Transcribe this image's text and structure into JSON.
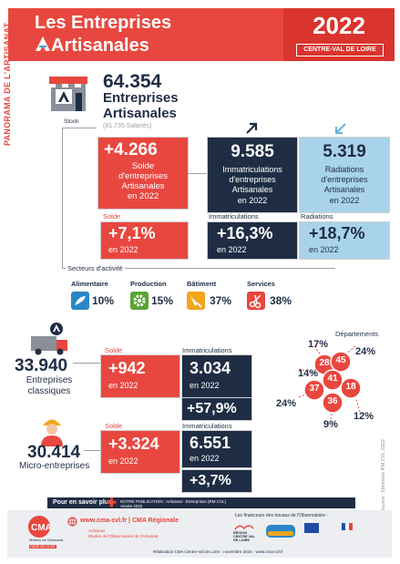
{
  "header": {
    "title_line1": "Les Entreprises",
    "title_line2": "Artisanales",
    "year": "2022",
    "region": "CENTRE-VAL DE LOIRE",
    "side_label": "PANORAMA DE L'ARTISANAT"
  },
  "stock": {
    "value": "64.354",
    "line1": "Entreprises",
    "line2": "Artisanales",
    "employees": "(81.735 Salariés)",
    "label": "Stock"
  },
  "solde_total": {
    "value": "+4.266",
    "l1": "Solde",
    "l2": "d'entreprises",
    "l3": "Artisanales",
    "l4": "en 2022"
  },
  "immatriculations": {
    "value": "9.585",
    "l1": "Immatriculations",
    "l2": "d'entreprises",
    "l3": "Artisanales",
    "l4": "en 2022"
  },
  "radiations": {
    "value": "5.319",
    "l1": "Radiations",
    "l2": "d'entreprises",
    "l3": "Artisanales",
    "l4": "en 2022"
  },
  "solde_pct": {
    "label": "Solde",
    "value": "+7,1%",
    "sub": "en 2022"
  },
  "immat_pct": {
    "label": "Immatriculations",
    "value": "+16,3%",
    "sub": "en 2022"
  },
  "radiat_pct": {
    "label": "Radiations",
    "value": "+18,7%",
    "sub": "en 2022"
  },
  "sectors": {
    "label": "Secteurs d'activité",
    "items": [
      {
        "name": "Alimentaire",
        "pct": "10%",
        "color": "#2b86c5"
      },
      {
        "name": "Production",
        "pct": "15%",
        "color": "#5aa436"
      },
      {
        "name": "Bâtiment",
        "pct": "37%",
        "color": "#f2a51d"
      },
      {
        "name": "Services",
        "pct": "38%",
        "color": "#e8473f"
      }
    ]
  },
  "classic": {
    "value": "33.940",
    "l1": "Entreprises",
    "l2": "classiques",
    "solde_label": "Solde",
    "solde": "+942",
    "solde_sub": "en 2022",
    "immat_label": "Immatriculations",
    "immat": "3.034",
    "immat_sub": "en 2022",
    "pct": "+57,9%"
  },
  "micro": {
    "value": "30.414",
    "l1": "Micro-entreprises",
    "solde_label": "Solde",
    "solde": "+3.324",
    "solde_sub": "en 2022",
    "immat_label": "Immatriculations",
    "immat": "6.551",
    "immat_sub": "en 2022",
    "pct": "+3,7%"
  },
  "departements": {
    "label": "Départements",
    "codes": [
      "28",
      "45",
      "41",
      "18",
      "37",
      "36"
    ],
    "pcts": [
      "17%",
      "24%",
      "14%",
      "24%",
      "12%",
      "9%"
    ]
  },
  "source": "Source : Données RM CVL 2022",
  "footer": {
    "more": "Pour en savoir plus",
    "notice": "NOTRE PUBLICATION : Artisanat - Entreprises (RM CVL) Année 2022",
    "site": "www.cma-cvl.fr | CMA Régionale",
    "bullet1": "Artisanat",
    "bullet2": "Études de l'Observatoire de l'Artisanat",
    "financeurs": "Les financeurs des travaux de l'Observatoire :",
    "region_logo": "RÉGION CENTRE VAL DE LOIRE",
    "bottom": "Réalisation CMA Centre-Val de Loire · novembre 2023 · www.cma-cvl.fr",
    "cma_tag": "Métiers de l'Artisanat",
    "cma_sub": "FAIRE DE LA VIE"
  }
}
